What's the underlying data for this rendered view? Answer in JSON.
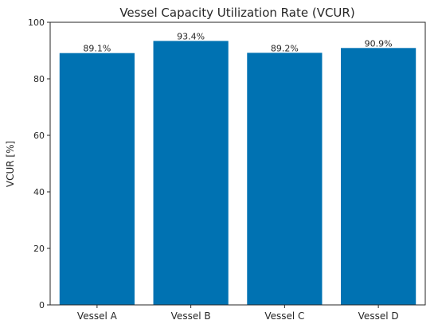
{
  "chart_data": {
    "type": "bar",
    "title": "Vessel Capacity Utilization Rate (VCUR)",
    "xlabel": "",
    "ylabel": "VCUR [%]",
    "categories": [
      "Vessel A",
      "Vessel B",
      "Vessel C",
      "Vessel D"
    ],
    "values": [
      89.1,
      93.4,
      89.2,
      90.9
    ],
    "data_labels": [
      "89.1%",
      "93.4%",
      "89.2%",
      "90.9%"
    ],
    "ylim": [
      0,
      100
    ],
    "yticks": [
      0,
      20,
      40,
      60,
      80,
      100
    ],
    "grid": false,
    "bar_color": "#0072B2"
  }
}
